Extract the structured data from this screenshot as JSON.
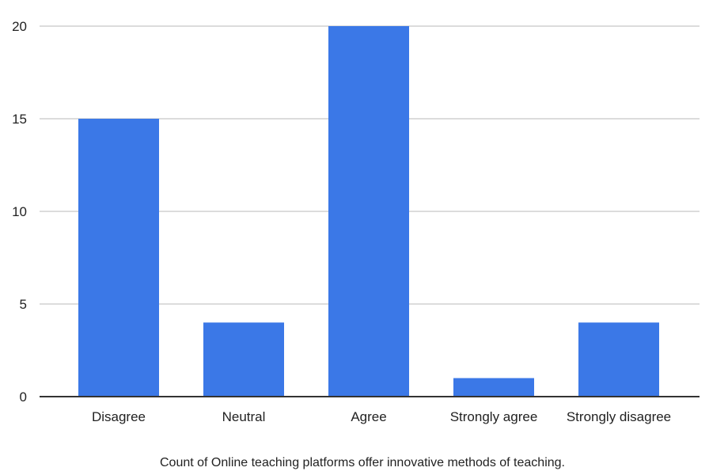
{
  "chart_data": {
    "type": "bar",
    "title": "",
    "xlabel": "Count of Online teaching platforms offer innovative methods of teaching.",
    "ylabel": "",
    "categories": [
      "Disagree",
      "Neutral",
      "Agree",
      "Strongly agree",
      "Strongly disagree"
    ],
    "values": [
      15,
      4,
      20,
      1,
      4
    ],
    "ylim": [
      0,
      20
    ],
    "yticks": [
      0,
      5,
      10,
      15,
      20
    ],
    "grid": true,
    "legend": "none",
    "bar_color": "#3b78e7"
  }
}
